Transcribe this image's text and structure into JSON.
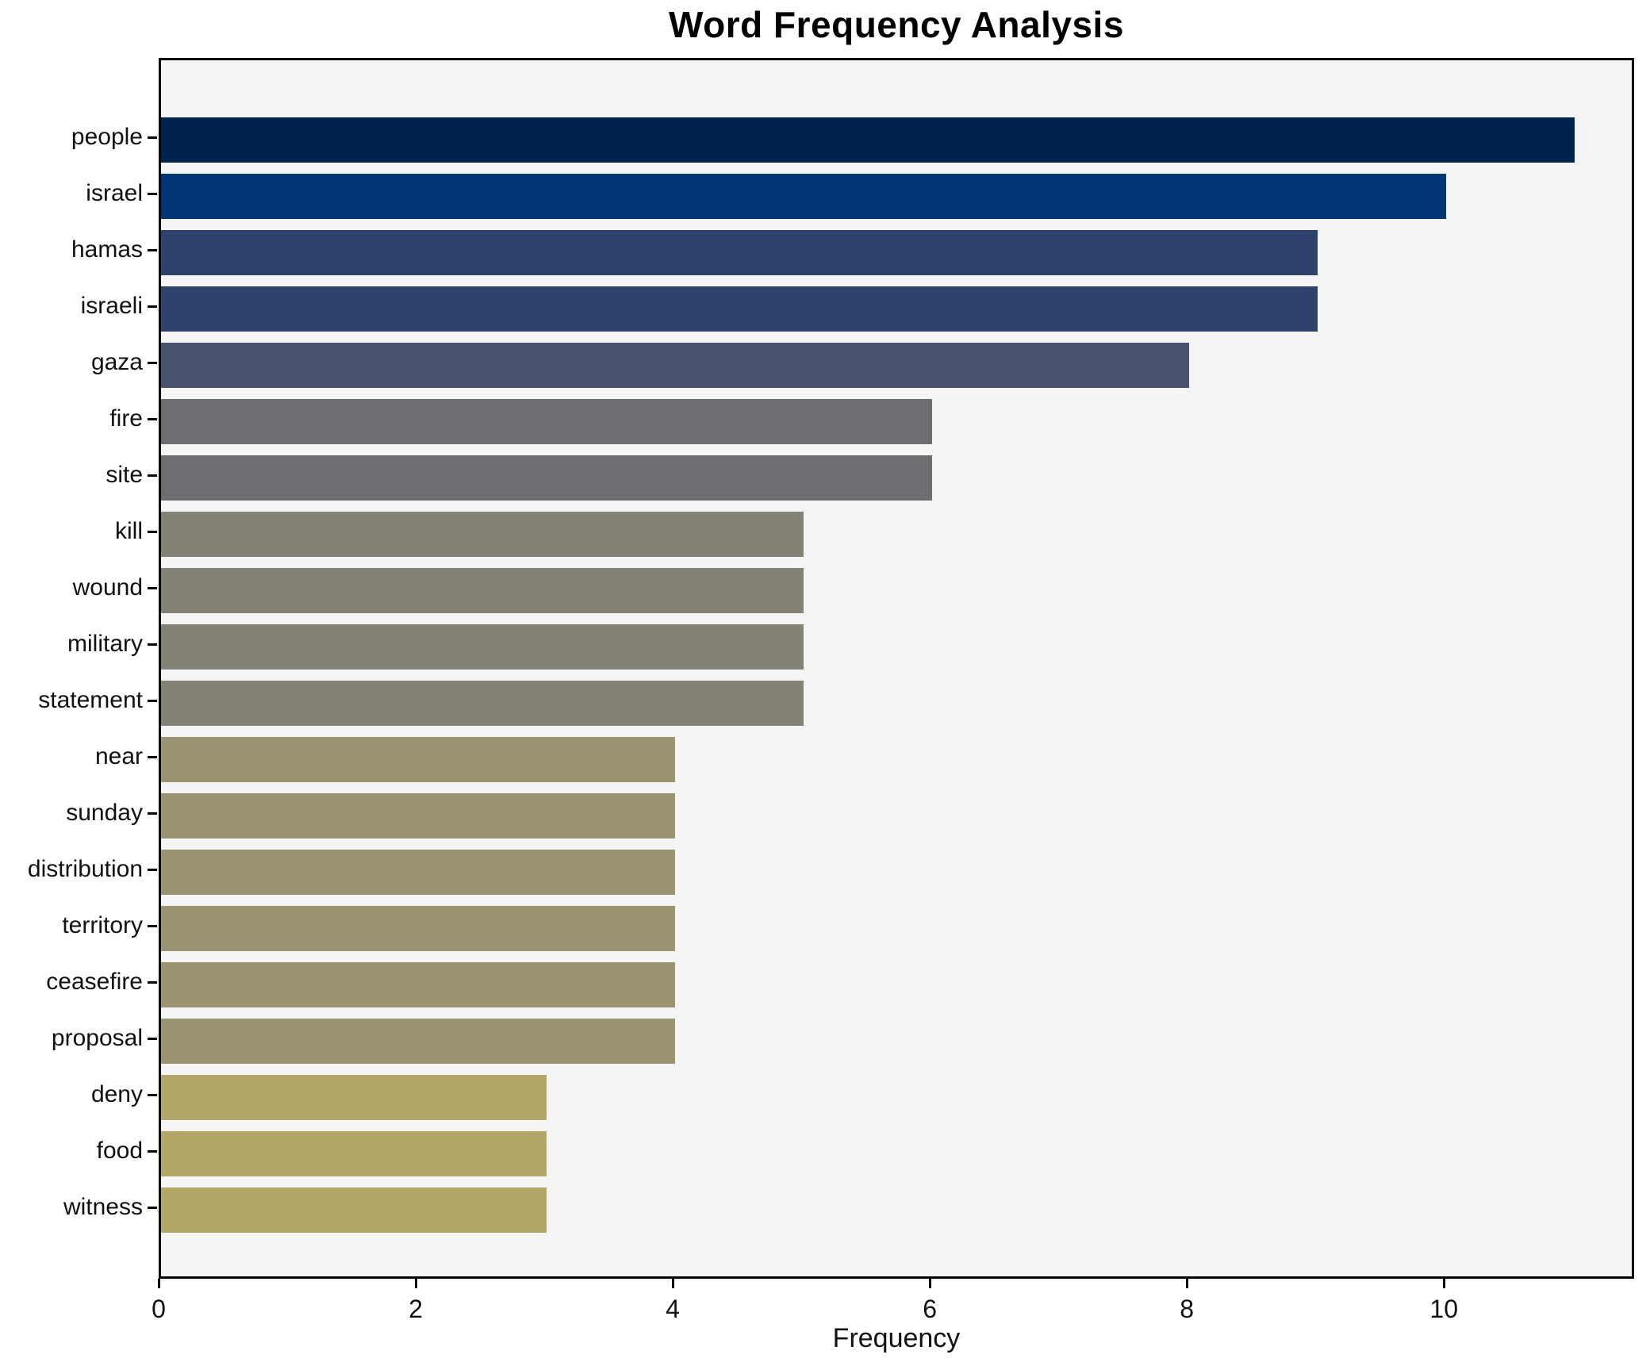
{
  "title": "Word Frequency Analysis",
  "xlabel": "Frequency",
  "chart_data": {
    "type": "bar",
    "orientation": "horizontal",
    "title": "Word Frequency Analysis",
    "xlabel": "Frequency",
    "ylabel": "",
    "categories": [
      "people",
      "israel",
      "hamas",
      "israeli",
      "gaza",
      "fire",
      "site",
      "kill",
      "wound",
      "military",
      "statement",
      "near",
      "sunday",
      "distribution",
      "territory",
      "ceasefire",
      "proposal",
      "deny",
      "food",
      "witness"
    ],
    "values": [
      11,
      10,
      9,
      9,
      8,
      6,
      6,
      5,
      5,
      5,
      5,
      4,
      4,
      4,
      4,
      4,
      4,
      3,
      3,
      3
    ],
    "bar_colors": [
      "#00224e",
      "#033677",
      "#2e426b",
      "#2e426b",
      "#4a536e",
      "#6d6e71",
      "#6d6e71",
      "#848277",
      "#848277",
      "#848277",
      "#848277",
      "#9b9470",
      "#9b9470",
      "#9b9470",
      "#9b9470",
      "#9b9470",
      "#9b9470",
      "#b2a768",
      "#b2a768",
      "#b2a768"
    ],
    "xlim": [
      0,
      11.48
    ],
    "xticks": [
      0,
      2,
      4,
      6,
      8,
      10
    ],
    "grid": false,
    "legend": null,
    "plot_background": "#f5f5f6",
    "figure_background": "#ffffff",
    "spine_color": "#000000"
  }
}
